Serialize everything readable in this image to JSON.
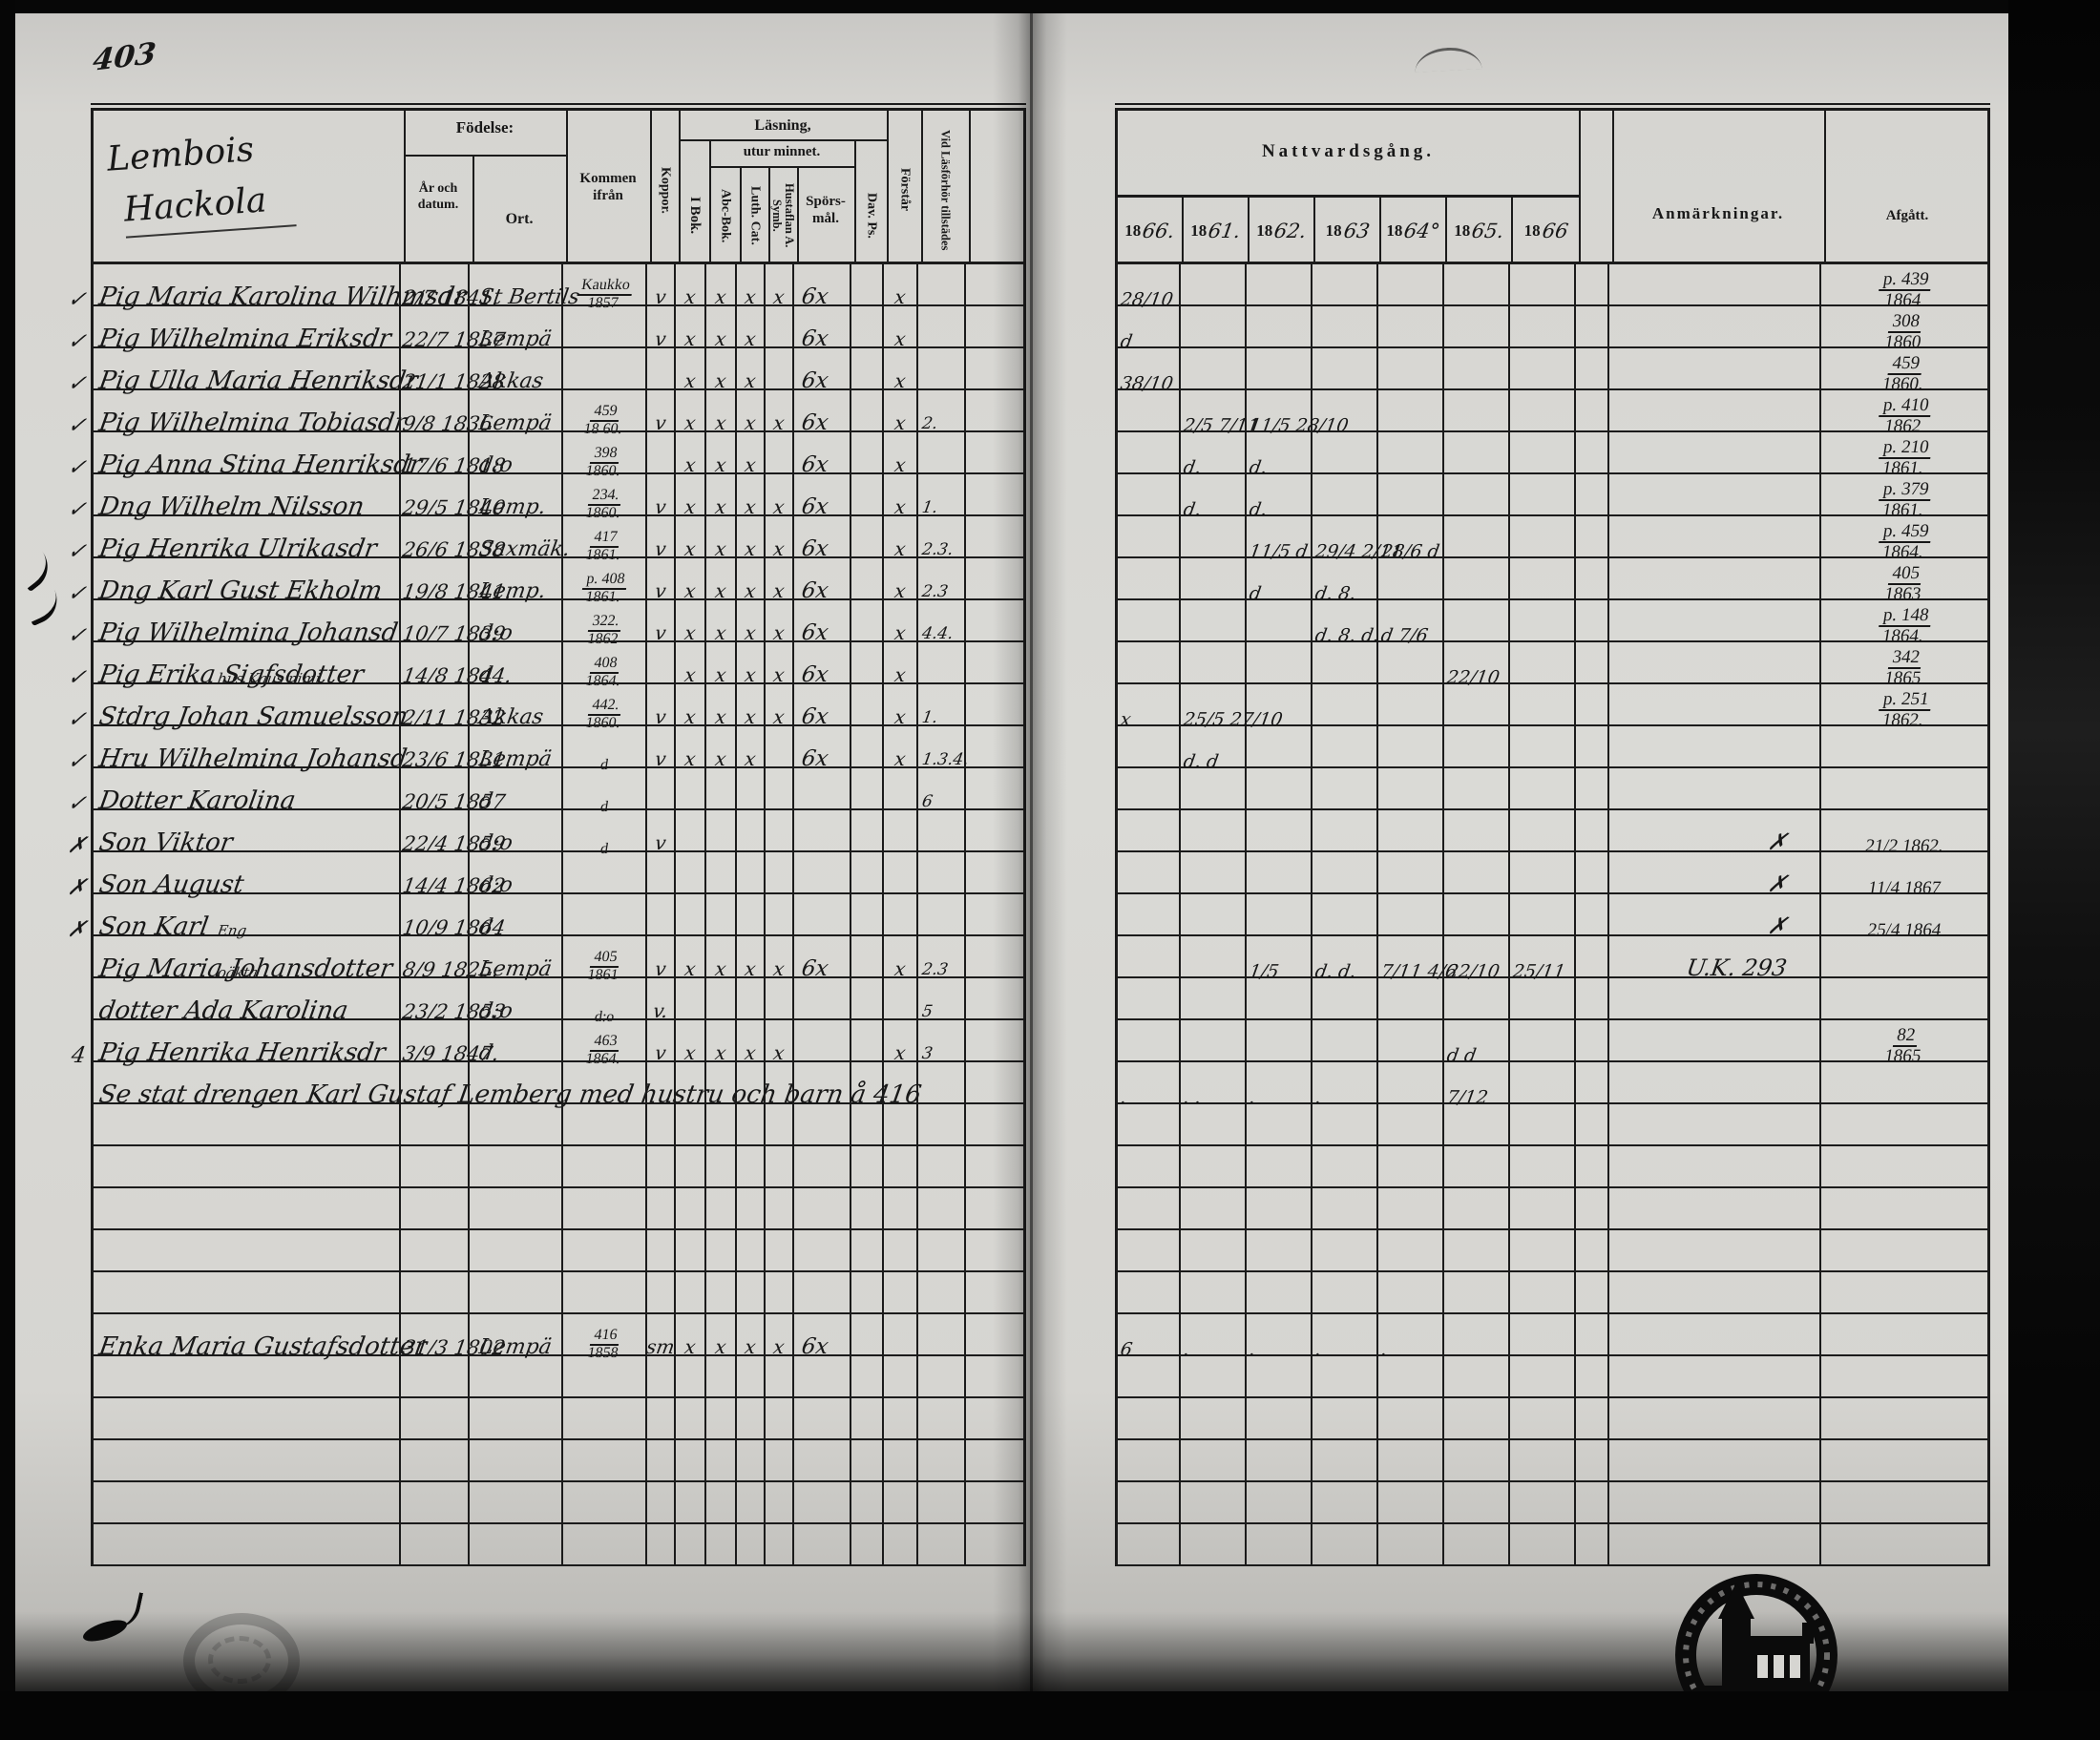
{
  "page_number": "403",
  "left_page": {
    "title_lines": [
      "Lembois",
      "Hackola"
    ],
    "header": {
      "fodelse": "Födelse:",
      "ar_och_datum": "År och datum.",
      "ort": "Ort.",
      "kommen_ifran": "Kommen ifrån",
      "koppor": "Koppor.",
      "lasning": "Läsning,",
      "utur_minnet": "utur minnet.",
      "i_bok": "I Bok.",
      "abc_bok": "Abc-Bok.",
      "luth_cat": "Luth. Cat.",
      "hustaflan": "Hustaflan A. Symb.",
      "sporsmal": "Spörs-mål.",
      "dav_ps": "Dav. Ps.",
      "forstar": "Förstår",
      "vid_lasforhor": "Vid Läsförhör tillstädes"
    }
  },
  "right_page": {
    "nattvardsgang": "Nattvardsgång.",
    "years": [
      {
        "p": "18",
        "s": "66."
      },
      {
        "p": "18",
        "s": "61."
      },
      {
        "p": "18",
        "s": "62."
      },
      {
        "p": "18",
        "s": "63"
      },
      {
        "p": "18",
        "s": "64°"
      },
      {
        "p": "18",
        "s": "65."
      },
      {
        "p": "18",
        "s": "66"
      }
    ],
    "anmarkningar": "Anmärkningar.",
    "afgatt": "Afgått."
  },
  "stamps": {
    "bottom_right": "church-seal",
    "bottom_left": "faint-oval-seal"
  },
  "rows": [
    {
      "margin": "✓",
      "name": "Pig Maria Karolina Wilhmsdr",
      "born": "2/7 1841.",
      "ort": "St Bertils",
      "kommen": "Kaukko|1857",
      "koppor": "v",
      "ibok": "x",
      "abc": "x",
      "luth": "x",
      "hust": "x",
      "sporsmal": "6x",
      "forstar": "x",
      "natt": {
        "c0": "28/10"
      },
      "afg": "p. 439|1864"
    },
    {
      "margin": "✓",
      "name": "Pig Wilhelmina Eriksdr",
      "born": "22/7 1837",
      "ort": "Lempä",
      "koppor": "v",
      "ibok": "x",
      "abc": "x",
      "luth": "x",
      "sporsmal": "6x",
      "forstar": "x",
      "natt": {
        "c0": "d"
      },
      "afg": "308|1860"
    },
    {
      "margin": "✓",
      "name": "Pig Ulla Maria Henriksdr",
      "born": "21/1 1828",
      "ort": "Akkas",
      "ibok": "x",
      "abc": "x",
      "luth": "x",
      "sporsmal": "6x",
      "forstar": "x",
      "natt": {
        "c0": "38/10"
      },
      "afg": "459|1860."
    },
    {
      "margin": "✓",
      "name": "Pig Wilhelmina Tobiasdr",
      "born": "9/8 1836",
      "ort": "Lempä",
      "kommen": "459|18 60.",
      "koppor": "v",
      "ibok": "x",
      "abc": "x",
      "luth": "x",
      "hust": "x",
      "sporsmal": "6x",
      "forstar": "x",
      "vidlas": "2.",
      "natt": {
        "c1": "2/5 7/11",
        "c2": "11/5 28/10"
      },
      "afg": "p. 410|1862"
    },
    {
      "margin": "✓",
      "name": "Pig Anna Stina Henriksdr",
      "born": "17/6 1818",
      "ort": "d:o",
      "kommen": "398|1860.",
      "ibok": "x",
      "abc": "x",
      "luth": "x",
      "sporsmal": "6x",
      "forstar": "x",
      "natt": {
        "c1": "d.",
        "c2": "d."
      },
      "afg": "p. 210|1861."
    },
    {
      "margin": "✓",
      "name": "Dng Wilhelm Nilsson",
      "born": "29/5 1840",
      "ort": "Lemp.",
      "kommen": "234.|1860.",
      "koppor": "v",
      "ibok": "x",
      "abc": "x",
      "luth": "x",
      "hust": "x",
      "sporsmal": "6x",
      "forstar": "x",
      "vidlas": "1.",
      "natt": {
        "c1": "d.",
        "c2": "d."
      },
      "afg": "p. 379|1861."
    },
    {
      "margin": "✓",
      "name": "Pig Henrika Ulrikasdr",
      "born": "26/6 1838",
      "ort": "Saxmäk.",
      "kommen": "417|1861.",
      "koppor": "v",
      "ibok": "x",
      "abc": "x",
      "luth": "x",
      "hust": "x",
      "sporsmal": "6x",
      "forstar": "x",
      "vidlas": "2.3.",
      "natt": {
        "c2": "11/5 d",
        "c3": "29/4 2/11",
        "c4": "28/6 d"
      },
      "afg": "p. 459|1864."
    },
    {
      "margin": "✓",
      "name": "Dng Karl Gust Ekholm",
      "born": "19/8 1841.",
      "ort": "Lemp.",
      "kommen": "p. 408|1861.",
      "koppor": "v",
      "ibok": "x",
      "abc": "x",
      "luth": "x",
      "hust": "x",
      "sporsmal": "6x",
      "forstar": "x",
      "vidlas": "2.3",
      "natt": {
        "c2": "d",
        "c3": "d. 8."
      },
      "afg": "405|1863"
    },
    {
      "margin": "✓",
      "name": "Pig Wilhelmina Johansd",
      "born": "10/7 1839",
      "ort": "d:o",
      "kommen": "322.|1862",
      "koppor": "v",
      "ibok": "x",
      "abc": "x",
      "luth": "x",
      "hust": "x",
      "sporsmal": "6x",
      "forstar": "x",
      "vidlas": "4.4.",
      "natt": {
        "c3": "d. 8. d.",
        "c4": "d 7/6"
      },
      "afg": "p. 148|1864."
    },
    {
      "margin": "✓",
      "name": "Pig Erika Sigfsdotter",
      "born": "14/8 1844.",
      "ort": "d",
      "kommen": "408|1864.",
      "ibok": "x",
      "abc": "x",
      "luth": "x",
      "hust": "x",
      "sporsmal": "6x",
      "forstar": "x",
      "natt": {
        "c5": "22/10"
      },
      "afg": "342|1865"
    },
    {
      "margin": "✓",
      "name": "Stdrg Johan Samuelsson",
      "name_super": "hus Kaus nimi",
      "born": "2/11 1832",
      "ort": "Akkas",
      "kommen": "442.|1860.",
      "koppor": "v",
      "ibok": "x",
      "abc": "x",
      "luth": "x",
      "hust": "x",
      "sporsmal": "6x",
      "forstar": "x",
      "vidlas": "1.",
      "natt": {
        "c0": "x",
        "c1": "25/5 27/10"
      },
      "afg": "p. 251|1862."
    },
    {
      "margin": "✓",
      "name": "Hru Wilhelmina Johansd",
      "born": "23/6 1831.",
      "ort": "Lempä",
      "kommen": "d",
      "koppor": "v",
      "ibok": "x",
      "abc": "x",
      "luth": "x",
      "sporsmal": "6x",
      "forstar": "x",
      "vidlas": "1.3.4.",
      "natt": {
        "c1": "d. d"
      }
    },
    {
      "margin": "✓",
      "name": "Dotter Karolina",
      "born": "20/5 1857",
      "ort": "d",
      "kommen": "d",
      "vidlas": "6"
    },
    {
      "margin": "✗",
      "name": "Son Viktor",
      "born": "22/4 1859",
      "ort": "d:o",
      "kommen": "d",
      "koppor": "v",
      "anm": "✗",
      "afg": "21/2 1862."
    },
    {
      "margin": "✗",
      "name": "Son August",
      "born": "14/4 1862",
      "ort": "d:o",
      "anm": "✗",
      "afg": "11/4 1867"
    },
    {
      "margin": "✗",
      "name": "Son Karl",
      "born": "10/9 1864",
      "ort": "d",
      "anm": "✗",
      "afg": "25/4 1864"
    },
    {
      "name": "Pig Maria Johansdotter",
      "name_super": "Eng",
      "born": "8/9 1825.",
      "ort": "Lempä",
      "kommen": "405|1861",
      "koppor": "v",
      "ibok": "x",
      "abc": "x",
      "luth": "x",
      "hust": "x",
      "sporsmal": "6x",
      "forstar": "x",
      "vidlas": "2.3",
      "natt": {
        "c2": "1/5",
        "c3": "d. d.",
        "c4": "7/11 4/6",
        "c5": "22/10",
        "c6": "25/11"
      },
      "anm": "U.K. 293"
    },
    {
      "name_super": "oäkta",
      "name": "dotter Ada Karolina",
      "born": "23/2 1853",
      "ort": "d:o",
      "kommen": "d:o",
      "koppor": "v.",
      "vidlas": "5"
    },
    {
      "margin": "4",
      "name": "Pig Henrika Henriksdr",
      "born": "3/9 1847.",
      "ort": "d",
      "kommen": "463|1864.",
      "koppor": "v",
      "ibok": "x",
      "abc": "x",
      "luth": "x",
      "hust": "x",
      "forstar": "x",
      "vidlas": "3",
      "natt": {
        "c5": "d d"
      },
      "afg": "82|1865"
    },
    {
      "name": "Se stat drengen Karl Gustaf Lemberg med hustru och barn å 416",
      "natt": {
        "c0": ".",
        "c1": ". .",
        "c2": ".",
        "c3": ".",
        "c5": "7/12"
      }
    },
    {},
    {},
    {},
    {},
    {},
    {
      "name": "Enka Maria Gustafsdotter",
      "born": "31/3 1802",
      "ort": "Lempä",
      "kommen": "416|1858",
      "koppor": "sm",
      "ibok": "x",
      "abc": "x",
      "luth": "x",
      "hust": "x",
      "sporsmal": "6x",
      "natt": {
        "c0": "6",
        "c1": ".",
        "c2": ".",
        "c3": ".",
        "c4": "."
      }
    },
    {},
    {},
    {},
    {},
    {}
  ]
}
